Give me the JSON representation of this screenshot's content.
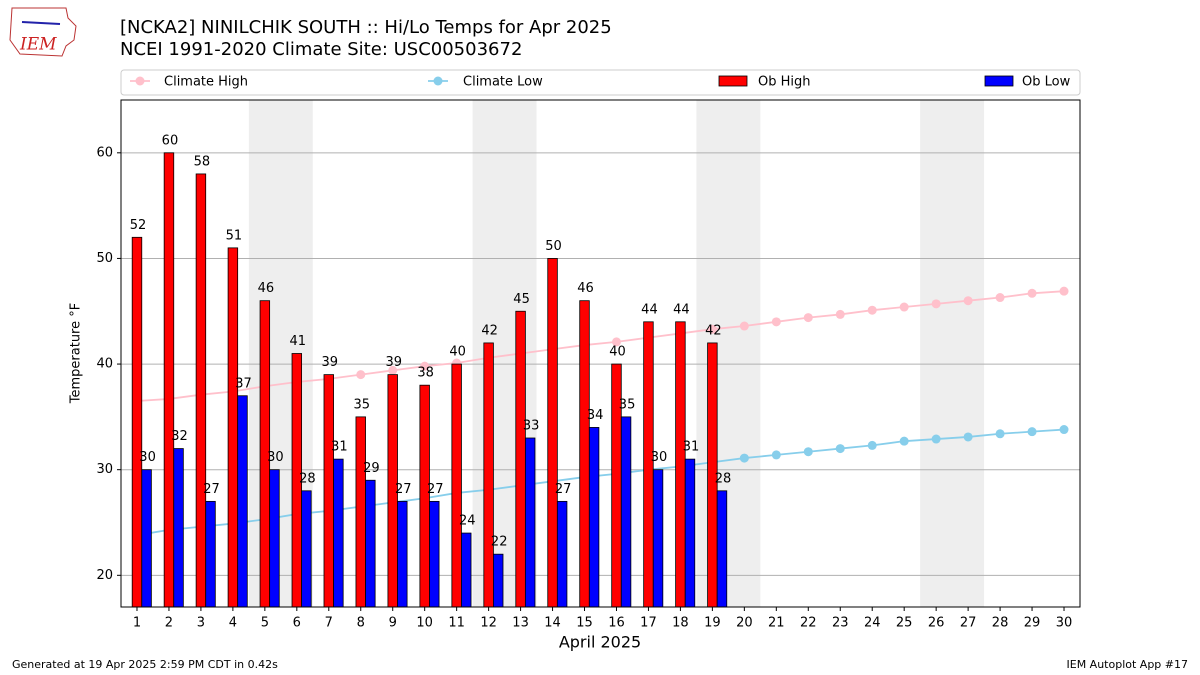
{
  "logo": "IEM",
  "footer": {
    "left": "Generated at 19 Apr 2025 2:59 PM CDT in 0.42s",
    "right": "IEM Autoplot App #17"
  },
  "chart_data": {
    "type": "bar",
    "title": [
      "[NCKA2] NINILCHIK SOUTH :: Hi/Lo Temps for Apr 2025",
      "NCEI 1991-2020 Climate Site: USC00503672"
    ],
    "xlabel": "April 2025",
    "ylabel": "Temperature °F",
    "categories": [
      1,
      2,
      3,
      4,
      5,
      6,
      7,
      8,
      9,
      10,
      11,
      12,
      13,
      14,
      15,
      16,
      17,
      18,
      19,
      20,
      21,
      22,
      23,
      24,
      25,
      26,
      27,
      28,
      29,
      30
    ],
    "shaded": [
      [
        5,
        6
      ],
      [
        12,
        13
      ],
      [
        19,
        20
      ],
      [
        26,
        27
      ]
    ],
    "ylim": [
      17,
      65
    ],
    "yticks": [
      20,
      30,
      40,
      50,
      60
    ],
    "grid": true,
    "legend": "top",
    "series": [
      {
        "name": "Climate High",
        "type": "line",
        "color": "#ffc0cb",
        "values": [
          36.5,
          36.7,
          37.1,
          37.4,
          37.9,
          38.3,
          38.6,
          39.0,
          39.4,
          39.8,
          40.1,
          40.6,
          41.0,
          41.4,
          41.8,
          42.1,
          42.5,
          42.9,
          43.3,
          43.6,
          44.0,
          44.4,
          44.7,
          45.1,
          45.4,
          45.7,
          46.0,
          46.3,
          46.7,
          46.9
        ]
      },
      {
        "name": "Climate Low",
        "type": "line",
        "color": "#87ceeb",
        "values": [
          23.8,
          24.3,
          24.6,
          24.9,
          25.3,
          25.8,
          26.1,
          26.5,
          26.9,
          27.3,
          27.8,
          28.1,
          28.5,
          28.9,
          29.3,
          29.6,
          30.0,
          30.3,
          30.7,
          31.1,
          31.4,
          31.7,
          32.0,
          32.3,
          32.7,
          32.9,
          33.1,
          33.4,
          33.6,
          33.8
        ]
      },
      {
        "name": "Ob High",
        "type": "bar",
        "color": "#ff0000",
        "values": [
          52,
          60,
          58,
          51,
          46,
          41,
          39,
          35,
          39,
          38,
          40,
          42,
          45,
          50,
          46,
          40,
          44,
          44,
          42,
          null,
          null,
          null,
          null,
          null,
          null,
          null,
          null,
          null,
          null,
          null
        ]
      },
      {
        "name": "Ob Low",
        "type": "bar",
        "color": "#0000ff",
        "values": [
          30,
          32,
          27,
          37,
          30,
          28,
          31,
          29,
          27,
          27,
          24,
          22,
          33,
          27,
          34,
          35,
          30,
          31,
          28,
          null,
          null,
          null,
          null,
          null,
          null,
          null,
          null,
          null,
          null,
          null
        ]
      }
    ]
  }
}
